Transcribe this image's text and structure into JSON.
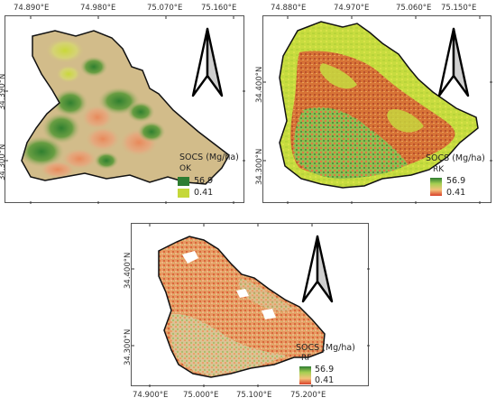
{
  "panels": {
    "ok": {
      "x_ticks": [
        "74.890°E",
        "74.980°E",
        "75.070°E",
        "75.160°E"
      ],
      "y_ticks": [
        "34.390°N",
        "34.300°N"
      ],
      "legend": {
        "title": "SOCS (Mg/ha)",
        "model": "OK",
        "max": "56.9",
        "min": "0.41"
      }
    },
    "rk": {
      "x_ticks": [
        "74.880°E",
        "74.970°E",
        "75.060°E",
        "75.150°E"
      ],
      "y_ticks": [
        "34.400°N",
        "34.300°N"
      ],
      "legend": {
        "title": "SOCS (Mg/ha)",
        "model": "RK",
        "max": "56.9",
        "min": "0.41"
      }
    },
    "rf": {
      "x_ticks": [
        "74.900°E",
        "75.000°E",
        "75.100°E",
        "75.200°E"
      ],
      "y_ticks": [
        "34.400°N",
        "34.300°N"
      ],
      "legend": {
        "title": "SOCS (Mg/ha)",
        "model": "RF",
        "max": "56.9",
        "min": "0.41"
      }
    }
  },
  "colors": {
    "dark_green": "#2e7d32",
    "light_green": "#b5d334",
    "tan": "#d2bc8a",
    "orange": "#e58a52",
    "red": "#c0392b",
    "yellow_green": "#d4e23c"
  },
  "icons": [
    "north-arrow-icon"
  ]
}
